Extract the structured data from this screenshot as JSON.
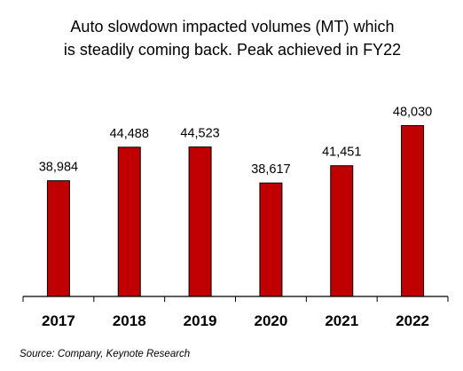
{
  "chart_data": {
    "type": "bar",
    "title_lines": [
      "Auto slowdown impacted volumes (MT) which",
      "is steadily coming back. Peak achieved in FY22"
    ],
    "categories": [
      "2017",
      "2018",
      "2019",
      "2020",
      "2021",
      "2022"
    ],
    "values": [
      38984,
      44488,
      44523,
      38617,
      41451,
      48030
    ],
    "value_labels": [
      "38,984",
      "44,488",
      "44,523",
      "38,617",
      "41,451",
      "48,030"
    ],
    "xlabel": "",
    "ylabel": "",
    "ylim": [
      20000,
      50000
    ],
    "grid": false,
    "legend": "none",
    "bar_color": "#c00000",
    "bar_edge_color": "#000000"
  },
  "source": "Source: Company, Keynote Research"
}
